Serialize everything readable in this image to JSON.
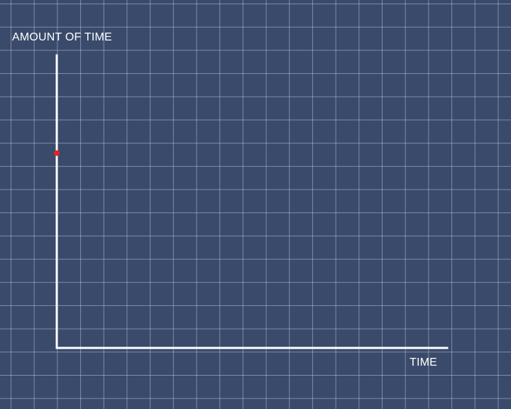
{
  "chart_data": {
    "type": "scatter",
    "title": "",
    "xlabel": "TIME",
    "ylabel": "AMOUNT OF TIME",
    "grid": true,
    "colors": {
      "background": "#3a4a6b",
      "grid": "#c8d2e6",
      "axes": "#ffffff",
      "point": "#e8231f"
    },
    "xlim": [
      0,
      1
    ],
    "ylim": [
      0,
      1
    ],
    "series": [
      {
        "x": [
          0
        ],
        "y": [
          0.7
        ]
      }
    ]
  }
}
